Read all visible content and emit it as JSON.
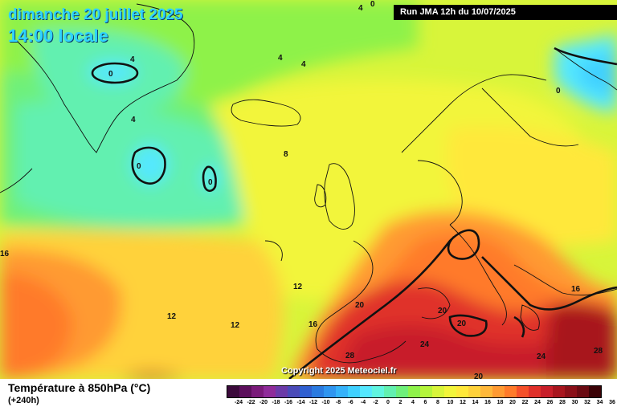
{
  "header": {
    "date": "dimanche 20 juillet 2025",
    "time": "14:00 locale",
    "run": "Run JMA 12h du 10/07/2025"
  },
  "copyright": "Copyright 2025 Meteociel.fr",
  "legend": {
    "title": "Température à 850hPa (°C)",
    "subtitle": "(+240h)",
    "ticks": [
      "-24",
      "-22",
      "-20",
      "-18",
      "-16",
      "-14",
      "-12",
      "-10",
      "-8",
      "-6",
      "-4",
      "-2",
      "0",
      "2",
      "4",
      "6",
      "8",
      "10",
      "12",
      "14",
      "16",
      "18",
      "20",
      "22",
      "24",
      "26",
      "28",
      "30",
      "32",
      "34",
      "36"
    ],
    "colors": [
      "#3b0a3b",
      "#5c0f5c",
      "#7a1a7a",
      "#8f2b9a",
      "#6b3aa8",
      "#4a4ab8",
      "#2f5fd0",
      "#2a7ae0",
      "#2f95f0",
      "#35b2fa",
      "#3fd0ff",
      "#55e8ff",
      "#60f5e0",
      "#62f0b0",
      "#6ef07a",
      "#8ef24a",
      "#b4f53a",
      "#d8f53a",
      "#f2f53a",
      "#ffe83a",
      "#ffd23a",
      "#ffb83a",
      "#ff9a32",
      "#ff7a2a",
      "#f5502a",
      "#e0302a",
      "#c81f2a",
      "#a8151e",
      "#8a0f18",
      "#6a0a12",
      "#3a0206"
    ]
  },
  "map": {
    "isotherms": [
      {
        "label": "0",
        "kind": "contour"
      },
      {
        "label": "0",
        "kind": "contour"
      },
      {
        "label": "0",
        "kind": "contour"
      },
      {
        "label": "0",
        "kind": "contour"
      },
      {
        "label": "20",
        "kind": "contour"
      },
      {
        "label": "20",
        "kind": "contour"
      },
      {
        "label": "20",
        "kind": "contour"
      },
      {
        "label": "20",
        "kind": "contour"
      }
    ],
    "value_labels": [
      "4",
      "4",
      "4",
      "4",
      "4",
      "0",
      "0",
      "0",
      "0",
      "0",
      "8",
      "12",
      "12",
      "12",
      "16",
      "16",
      "16",
      "20",
      "20",
      "20",
      "24",
      "24",
      "28",
      "28",
      "20"
    ]
  }
}
